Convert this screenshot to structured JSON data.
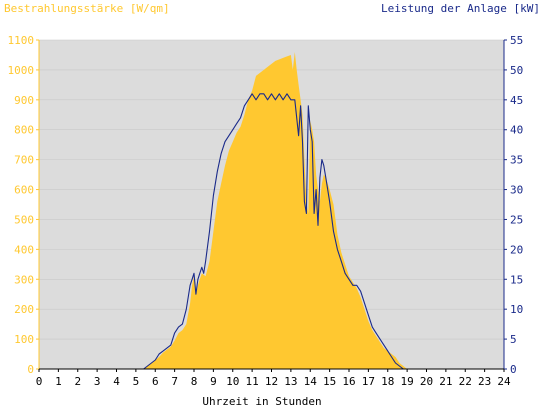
{
  "chart_data": {
    "type": "area",
    "title_left": "Bestrahlungsstärke [W/qm]",
    "title_right": "Leistung der Anlage [kW]",
    "xlabel": "Uhrzeit in Stunden",
    "xlim": [
      0,
      24
    ],
    "y_left_lim": [
      0,
      1100
    ],
    "y_right_lim": [
      0,
      55
    ],
    "x_ticks": [
      "0",
      "1",
      "2",
      "3",
      "4",
      "5",
      "6",
      "7",
      "8",
      "9",
      "10",
      "11",
      "12",
      "13",
      "14",
      "15",
      "16",
      "17",
      "18",
      "19",
      "20",
      "21",
      "22",
      "23",
      "24"
    ],
    "y_left_ticks": [
      "0",
      "100",
      "200",
      "300",
      "400",
      "500",
      "600",
      "700",
      "800",
      "900",
      "1000",
      "1100"
    ],
    "y_right_ticks": [
      "0",
      "5",
      "10",
      "15",
      "20",
      "25",
      "30",
      "35",
      "40",
      "45",
      "50",
      "55"
    ],
    "grid": true,
    "colors": {
      "irradiance": "#ffc830",
      "power": "#1a2a8a",
      "plot_bg": "#dcdcdc",
      "left_axis": "#ffc830",
      "right_axis": "#1a2a8a"
    },
    "series": [
      {
        "name": "Bestrahlungsstärke [W/qm]",
        "axis": "left",
        "x": [
          0,
          5.4,
          5.6,
          5.8,
          6.0,
          6.2,
          6.4,
          6.6,
          6.8,
          7.0,
          7.2,
          7.4,
          7.6,
          7.8,
          7.9,
          8.0,
          8.1,
          8.2,
          8.3,
          8.4,
          8.6,
          8.8,
          9.0,
          9.2,
          9.4,
          9.6,
          9.8,
          10.0,
          10.2,
          10.4,
          10.6,
          10.8,
          11.0,
          11.2,
          11.4,
          11.6,
          11.8,
          12.0,
          12.2,
          12.4,
          12.6,
          12.8,
          13.0,
          13.1,
          13.2,
          13.3,
          13.4,
          13.5,
          13.6,
          13.7,
          13.8,
          13.9,
          14.0,
          14.1,
          14.2,
          14.3,
          14.4,
          14.5,
          14.6,
          14.7,
          14.8,
          15.0,
          15.2,
          15.4,
          15.6,
          15.8,
          16.0,
          16.2,
          16.4,
          16.6,
          16.8,
          17.0,
          17.2,
          17.4,
          17.6,
          17.8,
          18.0,
          18.2,
          18.4,
          18.6,
          18.8,
          19.0,
          19.2,
          19.4,
          24
        ],
        "values": [
          0,
          0,
          10,
          20,
          30,
          40,
          55,
          65,
          75,
          95,
          120,
          130,
          150,
          220,
          280,
          310,
          250,
          280,
          300,
          320,
          310,
          360,
          460,
          560,
          620,
          680,
          730,
          760,
          790,
          810,
          850,
          900,
          930,
          980,
          990,
          1000,
          1010,
          1020,
          1030,
          1035,
          1040,
          1045,
          1050,
          1000,
          1060,
          1000,
          950,
          900,
          850,
          700,
          560,
          520,
          830,
          800,
          760,
          650,
          600,
          560,
          620,
          650,
          640,
          600,
          550,
          450,
          390,
          350,
          310,
          290,
          270,
          240,
          200,
          160,
          130,
          110,
          90,
          70,
          60,
          50,
          40,
          20,
          10,
          0,
          0,
          0,
          0
        ]
      },
      {
        "name": "Leistung der Anlage [kW]",
        "axis": "right",
        "x": [
          0,
          5.4,
          5.6,
          5.8,
          6.0,
          6.2,
          6.4,
          6.6,
          6.8,
          7.0,
          7.2,
          7.4,
          7.6,
          7.8,
          7.9,
          8.0,
          8.1,
          8.2,
          8.3,
          8.4,
          8.5,
          8.6,
          8.8,
          9.0,
          9.2,
          9.4,
          9.6,
          9.8,
          10.0,
          10.2,
          10.4,
          10.6,
          10.8,
          11.0,
          11.2,
          11.4,
          11.6,
          11.8,
          12.0,
          12.2,
          12.4,
          12.6,
          12.8,
          13.0,
          13.2,
          13.4,
          13.5,
          13.6,
          13.7,
          13.8,
          13.9,
          14.0,
          14.1,
          14.2,
          14.3,
          14.4,
          14.5,
          14.6,
          14.7,
          14.8,
          15.0,
          15.2,
          15.4,
          15.6,
          15.8,
          16.0,
          16.2,
          16.4,
          16.6,
          16.8,
          17.0,
          17.2,
          17.4,
          17.6,
          17.8,
          18.0,
          18.2,
          18.4,
          18.6,
          18.8,
          19.0,
          19.2,
          19.4,
          24
        ],
        "values": [
          0,
          0,
          0.5,
          1,
          1.5,
          2.5,
          3,
          3.5,
          4,
          6,
          7,
          7.5,
          10,
          14,
          15,
          16,
          12.5,
          15,
          16,
          17,
          16,
          18,
          23,
          29,
          33,
          36,
          38,
          39,
          40,
          41,
          42,
          44,
          45,
          46,
          45,
          46,
          46,
          45,
          46,
          45,
          46,
          45,
          46,
          45,
          45,
          39,
          44,
          38,
          28,
          26,
          44,
          40,
          38,
          26,
          30,
          24,
          32,
          35,
          34,
          32,
          28,
          23,
          20,
          18,
          16,
          15,
          14,
          14,
          13,
          11,
          9,
          7,
          6,
          5,
          4,
          3,
          2,
          1,
          0.5,
          0,
          0,
          0,
          0,
          0
        ]
      }
    ]
  }
}
